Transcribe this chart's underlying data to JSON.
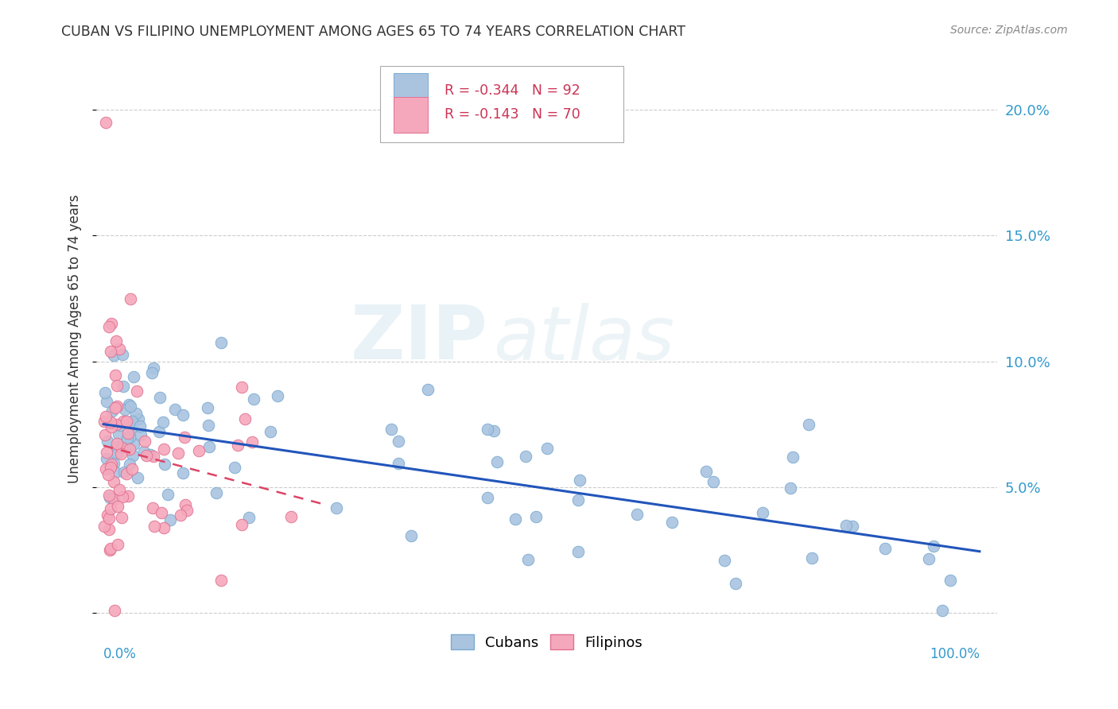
{
  "title": "CUBAN VS FILIPINO UNEMPLOYMENT AMONG AGES 65 TO 74 YEARS CORRELATION CHART",
  "source": "Source: ZipAtlas.com",
  "ylabel": "Unemployment Among Ages 65 to 74 years",
  "cuban_R": -0.344,
  "cuban_N": 92,
  "filipino_R": -0.143,
  "filipino_N": 70,
  "cuban_color": "#aac4e0",
  "cuban_edge": "#7aaad0",
  "filipino_color": "#f5a8bc",
  "filipino_edge": "#e07090",
  "trend_cuban_color": "#2255bb",
  "trend_filipino_color": "#dd4466",
  "watermark_zip": "ZIP",
  "watermark_atlas": "atlas",
  "ytick_vals": [
    0.0,
    0.05,
    0.1,
    0.15,
    0.2
  ],
  "ytick_labels": [
    "",
    "5.0%",
    "10.0%",
    "15.0%",
    "20.0%"
  ]
}
